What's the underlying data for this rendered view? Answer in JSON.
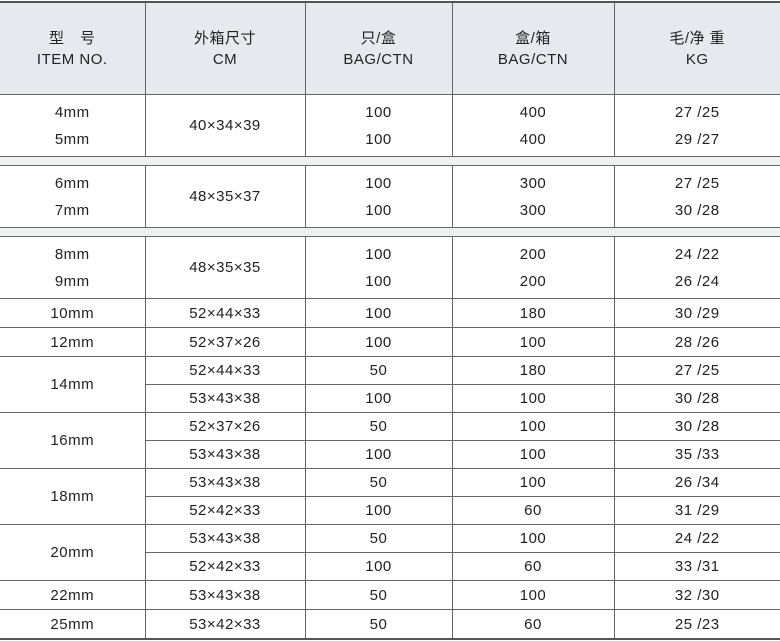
{
  "header": {
    "item": {
      "cn": "型　号",
      "en": "ITEM NO."
    },
    "size": {
      "cn": "外箱尺寸",
      "en": "CM"
    },
    "bag": {
      "cn": "只/盒",
      "en": "BAG/CTN"
    },
    "box": {
      "cn": "盒/箱",
      "en": "BAG/CTN"
    },
    "kg": {
      "cn": "毛/净 重",
      "en": "KG"
    }
  },
  "rows": [
    {
      "item": "4mm",
      "size": "40×34×39",
      "bag": "100",
      "box": "400",
      "kg": "27 /25"
    },
    {
      "item": "5mm",
      "size": "40×34×39",
      "bag": "100",
      "box": "400",
      "kg": "29 /27"
    },
    {
      "item": "6mm",
      "size": "48×35×37",
      "bag": "100",
      "box": "300",
      "kg": "27 /25"
    },
    {
      "item": "7mm",
      "size": "48×35×37",
      "bag": "100",
      "box": "300",
      "kg": "30 /28"
    },
    {
      "item": "8mm",
      "size": "48×35×35",
      "bag": "100",
      "box": "200",
      "kg": "24 /22"
    },
    {
      "item": "9mm",
      "size": "48×35×35",
      "bag": "100",
      "box": "200",
      "kg": "26 /24"
    },
    {
      "item": "10mm",
      "size": "52×44×33",
      "bag": "100",
      "box": "180",
      "kg": "30 /29"
    },
    {
      "item": "12mm",
      "size": "52×37×26",
      "bag": "100",
      "box": "100",
      "kg": "28 /26"
    },
    {
      "item": "14mm",
      "size": "52×44×33",
      "bag": "50",
      "box": "180",
      "kg": "27 /25"
    },
    {
      "item": "14mm",
      "size": "53×43×38",
      "bag": "100",
      "box": "100",
      "kg": "30 /28"
    },
    {
      "item": "16mm",
      "size": "52×37×26",
      "bag": "50",
      "box": "100",
      "kg": "30 /28"
    },
    {
      "item": "16mm",
      "size": "53×43×38",
      "bag": "100",
      "box": "100",
      "kg": "35 /33"
    },
    {
      "item": "18mm",
      "size": "53×43×38",
      "bag": "50",
      "box": "100",
      "kg": "26 /34"
    },
    {
      "item": "18mm",
      "size": "52×42×33",
      "bag": "100",
      "box": "60",
      "kg": "31 /29"
    },
    {
      "item": "20mm",
      "size": "53×43×38",
      "bag": "50",
      "box": "100",
      "kg": "24 /22"
    },
    {
      "item": "20mm",
      "size": "52×42×33",
      "bag": "100",
      "box": "60",
      "kg": "33 /31"
    },
    {
      "item": "22mm",
      "size": "53×43×38",
      "bag": "50",
      "box": "100",
      "kg": "32 /30"
    },
    {
      "item": "25mm",
      "size": "53×42×33",
      "bag": "50",
      "box": "60",
      "kg": "25 /23"
    }
  ]
}
